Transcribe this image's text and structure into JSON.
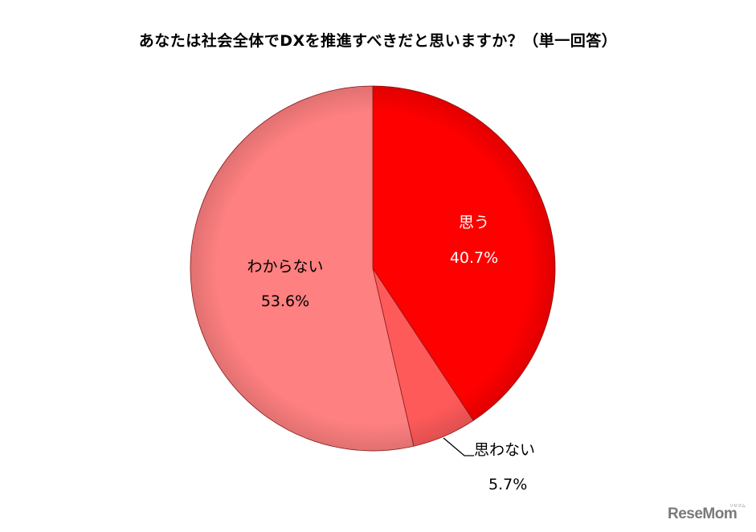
{
  "chart_data": {
    "type": "pie",
    "title": "あなたは社会全体でDXを推進すべきだと思いますか？（単一回答）",
    "categories": [
      "思う",
      "思わない",
      "わからない"
    ],
    "values": [
      40.7,
      5.7,
      53.6
    ],
    "value_labels": [
      "40.7%",
      "5.7%",
      "53.6%"
    ],
    "colors": [
      "#ff0000",
      "#ff5a5a",
      "#ff8080"
    ],
    "start_angle": "12 o'clock",
    "direction": "clockwise",
    "legend": "none (data labels on slices)"
  },
  "labels": {
    "omou": {
      "name": "思う",
      "value": "40.7%"
    },
    "omowanai": {
      "name": "思わない",
      "value": "5.7%"
    },
    "wakaranai": {
      "name": "わからない",
      "value": "53.6%"
    }
  },
  "watermark": {
    "text": "ReseMom",
    "small": "リセマム"
  }
}
